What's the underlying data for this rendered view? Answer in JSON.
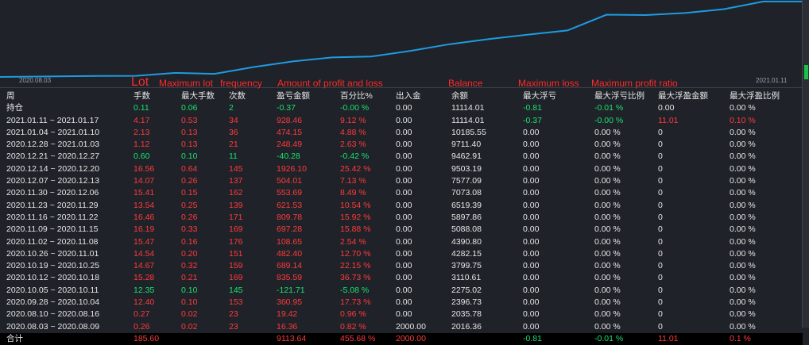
{
  "chart": {
    "x_start": "2020.08.03",
    "x_end": "2021.01.11",
    "line_color": "#1e9be0",
    "balance_series": [
      2016.36,
      2035.78,
      2396.73,
      2275.02,
      3110.61,
      3799.75,
      4282.15,
      4390.8,
      5088.08,
      5897.86,
      6519.39,
      7073.08,
      7577.09,
      9503.19,
      9462.91,
      9711.4,
      10185.55,
      11114.01,
      11114.01
    ]
  },
  "annotations": {
    "lot": "Lot",
    "max_lot": "Maximum lot",
    "frequency": "frequency",
    "amount": "Amount of profit and loss",
    "balance": "Balance",
    "max_loss": "Maximum loss",
    "max_profit_ratio": "Maximum profit ratio"
  },
  "headers": [
    "周",
    "手数",
    "最大手数",
    "次数",
    "盈亏金额",
    "百分比%",
    "出入金",
    "余额",
    "最大浮亏",
    "最大浮亏比例",
    "最大浮盈金额",
    "最大浮盈比例"
  ],
  "rows": [
    {
      "c": [
        "持仓",
        "0.11",
        "0.06",
        "2",
        "-0.37",
        "-0.00 %",
        "0.00",
        "11114.01",
        "-0.81",
        "-0.01 %",
        "0.00",
        "0.00 %"
      ],
      "tone": "green"
    },
    {
      "c": [
        "2021.01.11 ~ 2021.01.17",
        "4.17",
        "0.53",
        "34",
        "928.46",
        "9.12 %",
        "0.00",
        "11114.01",
        "-0.37",
        "-0.00 %",
        "11.01",
        "0.10 %"
      ],
      "tone": "red"
    },
    {
      "c": [
        "2021.01.04 ~ 2021.01.10",
        "2.13",
        "0.13",
        "36",
        "474.15",
        "4.88 %",
        "0.00",
        "10185.55",
        "0.00",
        "0.00 %",
        "0",
        "0.00 %"
      ],
      "tone": "red"
    },
    {
      "c": [
        "2020.12.28 ~ 2021.01.03",
        "1.12",
        "0.13",
        "21",
        "248.49",
        "2.63 %",
        "0.00",
        "9711.40",
        "0.00",
        "0.00 %",
        "0",
        "0.00 %"
      ],
      "tone": "red"
    },
    {
      "c": [
        "2020.12.21 ~ 2020.12.27",
        "0.60",
        "0.10",
        "11",
        "-40.28",
        "-0.42 %",
        "0.00",
        "9462.91",
        "0.00",
        "0.00 %",
        "0",
        "0.00 %"
      ],
      "tone": "green"
    },
    {
      "c": [
        "2020.12.14 ~ 2020.12.20",
        "16.56",
        "0.64",
        "145",
        "1926.10",
        "25.42 %",
        "0.00",
        "9503.19",
        "0.00",
        "0.00 %",
        "0",
        "0.00 %"
      ],
      "tone": "red"
    },
    {
      "c": [
        "2020.12.07 ~ 2020.12.13",
        "14.07",
        "0.26",
        "137",
        "504.01",
        "7.13 %",
        "0.00",
        "7577.09",
        "0.00",
        "0.00 %",
        "0",
        "0.00 %"
      ],
      "tone": "red"
    },
    {
      "c": [
        "2020.11.30 ~ 2020.12.06",
        "15.41",
        "0.15",
        "162",
        "553.69",
        "8.49 %",
        "0.00",
        "7073.08",
        "0.00",
        "0.00 %",
        "0",
        "0.00 %"
      ],
      "tone": "red"
    },
    {
      "c": [
        "2020.11.23 ~ 2020.11.29",
        "13.54",
        "0.25",
        "139",
        "621.53",
        "10.54 %",
        "0.00",
        "6519.39",
        "0.00",
        "0.00 %",
        "0",
        "0.00 %"
      ],
      "tone": "red"
    },
    {
      "c": [
        "2020.11.16 ~ 2020.11.22",
        "16.46",
        "0.26",
        "171",
        "809.78",
        "15.92 %",
        "0.00",
        "5897.86",
        "0.00",
        "0.00 %",
        "0",
        "0.00 %"
      ],
      "tone": "red"
    },
    {
      "c": [
        "2020.11.09 ~ 2020.11.15",
        "16.19",
        "0.33",
        "169",
        "697.28",
        "15.88 %",
        "0.00",
        "5088.08",
        "0.00",
        "0.00 %",
        "0",
        "0.00 %"
      ],
      "tone": "red"
    },
    {
      "c": [
        "2020.11.02 ~ 2020.11.08",
        "15.47",
        "0.16",
        "176",
        "108.65",
        "2.54 %",
        "0.00",
        "4390.80",
        "0.00",
        "0.00 %",
        "0",
        "0.00 %"
      ],
      "tone": "red"
    },
    {
      "c": [
        "2020.10.26 ~ 2020.11.01",
        "14.54",
        "0.20",
        "151",
        "482.40",
        "12.70 %",
        "0.00",
        "4282.15",
        "0.00",
        "0.00 %",
        "0",
        "0.00 %"
      ],
      "tone": "red"
    },
    {
      "c": [
        "2020.10.19 ~ 2020.10.25",
        "14.67",
        "0.32",
        "159",
        "689.14",
        "22.15 %",
        "0.00",
        "3799.75",
        "0.00",
        "0.00 %",
        "0",
        "0.00 %"
      ],
      "tone": "red"
    },
    {
      "c": [
        "2020.10.12 ~ 2020.10.18",
        "15.28",
        "0.21",
        "169",
        "835.59",
        "36.73 %",
        "0.00",
        "3110.61",
        "0.00",
        "0.00 %",
        "0",
        "0.00 %"
      ],
      "tone": "red"
    },
    {
      "c": [
        "2020.10.05 ~ 2020.10.11",
        "12.35",
        "0.10",
        "145",
        "-121.71",
        "-5.08 %",
        "0.00",
        "2275.02",
        "0.00",
        "0.00 %",
        "0",
        "0.00 %"
      ],
      "tone": "green"
    },
    {
      "c": [
        "2020.09.28 ~ 2020.10.04",
        "12.40",
        "0.10",
        "153",
        "360.95",
        "17.73 %",
        "0.00",
        "2396.73",
        "0.00",
        "0.00 %",
        "0",
        "0.00 %"
      ],
      "tone": "red"
    },
    {
      "c": [
        "2020.08.10 ~ 2020.08.16",
        "0.27",
        "0.02",
        "23",
        "19.42",
        "0.96 %",
        "0.00",
        "2035.78",
        "0.00",
        "0.00 %",
        "0",
        "0.00 %"
      ],
      "tone": "red"
    },
    {
      "c": [
        "2020.08.03 ~ 2020.08.09",
        "0.26",
        "0.02",
        "23",
        "16.36",
        "0.82 %",
        "2000.00",
        "2016.36",
        "0.00",
        "0.00 %",
        "0",
        "0.00 %"
      ],
      "tone": "red"
    }
  ],
  "total": {
    "c": [
      "合计",
      "185.60",
      "",
      "",
      "9113.64",
      "455.68 %",
      "2000.00",
      "",
      "-0.81",
      "-0.01 %",
      "11.01",
      "0.1 %"
    ]
  },
  "colors": {
    "profit": "#ff3b3b",
    "loss": "#19e36f",
    "background": "#1f2228",
    "annotation": "#ff2a2a"
  }
}
